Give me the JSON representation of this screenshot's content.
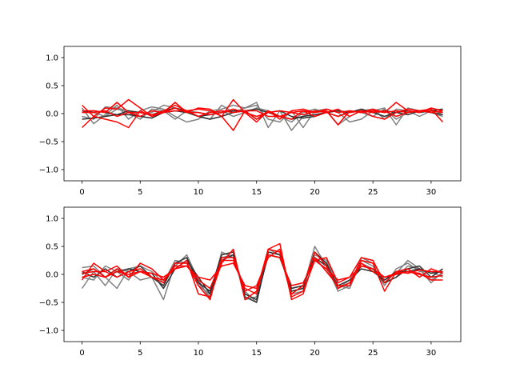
{
  "colors": {
    "gray": "#808080",
    "dark": "#303030",
    "red": "#ff0000",
    "frame": "#000000",
    "background": "#ffffff"
  },
  "chart_data": [
    {
      "type": "line",
      "title": "",
      "xlabel": "",
      "ylabel": "",
      "xlim": [
        -1.55,
        32.55
      ],
      "ylim": [
        -1.2,
        1.2
      ],
      "xticks": [
        0,
        5,
        10,
        15,
        20,
        25,
        30
      ],
      "yticks": [
        -1.0,
        -0.5,
        0.0,
        0.5,
        1.0
      ],
      "x_tick_labels": [
        "0",
        "5",
        "10",
        "15",
        "20",
        "25",
        "30"
      ],
      "y_tick_labels": [
        "−1.0",
        "−0.5",
        "0.0",
        "0.5",
        "1.0"
      ],
      "grid": false,
      "x": [
        0,
        1,
        2,
        3,
        4,
        5,
        6,
        7,
        8,
        9,
        10,
        11,
        12,
        13,
        14,
        15,
        16,
        17,
        18,
        19,
        20,
        21,
        22,
        23,
        24,
        25,
        26,
        27,
        28,
        29,
        30,
        31
      ],
      "series": [
        {
          "color": "gray",
          "values": [
            0.1,
            -0.18,
            -0.02,
            0.15,
            -0.1,
            0.05,
            0.12,
            0.08,
            -0.05,
            -0.15,
            -0.1,
            0.05,
            0.08,
            0.15,
            0.1,
            0.2,
            -0.25,
            0.05,
            -0.3,
            -0.05,
            0.05,
            0.05,
            -0.2,
            -0.05,
            0.05,
            0.08,
            -0.1,
            0.08,
            0.05,
            -0.05,
            0.05,
            0.08
          ]
        },
        {
          "color": "gray",
          "values": [
            -0.05,
            -0.1,
            0.12,
            0.1,
            0.05,
            -0.05,
            0.02,
            0.15,
            0.1,
            0.05,
            -0.05,
            -0.1,
            0.15,
            0.02,
            0.1,
            0.15,
            -0.1,
            -0.15,
            0.05,
            -0.25,
            0.05,
            0.08,
            0.02,
            -0.15,
            -0.1,
            0.05,
            0.1,
            -0.2,
            0.1,
            0.05,
            0.02,
            -0.05
          ]
        },
        {
          "color": "gray",
          "values": [
            0.05,
            0.02,
            -0.05,
            0.08,
            0.02,
            -0.1,
            0.08,
            0.05,
            -0.1,
            0.05,
            0.02,
            -0.02,
            0.05,
            -0.05,
            0.02,
            0.1,
            0.05,
            -0.05,
            -0.15,
            0.02,
            0.08,
            0.02,
            -0.05,
            0.05,
            0.02,
            -0.05,
            0.08,
            -0.1,
            0.02,
            0.05,
            0.08,
            -0.02
          ]
        },
        {
          "color": "dark",
          "values": [
            -0.1,
            -0.08,
            -0.05,
            -0.02,
            -0.02,
            -0.05,
            -0.08,
            0.02,
            0.05,
            0.02,
            -0.05,
            -0.02,
            0.02,
            0.05,
            0.05,
            0.08,
            0.02,
            -0.05,
            -0.1,
            -0.05,
            -0.02,
            0.02,
            0.05,
            0.02,
            0.05,
            0.02,
            0.05,
            0.02,
            -0.02,
            0.05,
            0.02,
            -0.02
          ]
        },
        {
          "color": "dark",
          "values": [
            0.02,
            0.05,
            0.02,
            -0.02,
            0.05,
            0.02,
            -0.02,
            0.05,
            0.1,
            0.05,
            -0.05,
            -0.1,
            -0.05,
            0.02,
            0.05,
            -0.1,
            0.02,
            0.05,
            -0.05,
            -0.08,
            -0.05,
            0.02,
            0.05,
            0.02,
            0.08,
            0.02,
            -0.05,
            0.02,
            0.05,
            0.02,
            0.05,
            0.08
          ]
        },
        {
          "color": "red",
          "values": [
            -0.25,
            -0.05,
            0.1,
            0.08,
            0.25,
            0.1,
            -0.05,
            0.05,
            0.15,
            0.05,
            0.08,
            0.05,
            -0.05,
            -0.3,
            0.05,
            -0.1,
            0.05,
            -0.1,
            0.05,
            0.08,
            0.02,
            0.05,
            -0.2,
            0.05,
            0.02,
            0.05,
            0.02,
            0.2,
            0.05,
            0.02,
            0.1,
            0.05
          ]
        },
        {
          "color": "red",
          "values": [
            0.15,
            -0.05,
            -0.1,
            -0.15,
            -0.25,
            0.05,
            -0.05,
            0.02,
            0.2,
            0.02,
            0.1,
            0.08,
            -0.05,
            0.25,
            0.02,
            -0.15,
            0.05,
            -0.05,
            -0.1,
            0.05,
            -0.05,
            0.02,
            0.08,
            -0.05,
            0.05,
            -0.05,
            -0.1,
            0.02,
            0.08,
            0.05,
            0.08,
            -0.15
          ]
        },
        {
          "color": "red",
          "values": [
            0.05,
            0.05,
            0.02,
            0.2,
            0.02,
            -0.05,
            0.05,
            0.02,
            0.05,
            0.05,
            -0.05,
            0.02,
            0.05,
            0.02,
            0.05,
            0.05,
            -0.05,
            -0.05,
            0.02,
            0.05,
            0.02,
            0.08,
            0.02,
            0.05,
            0.02,
            0.08,
            0.02,
            0.05,
            0.02,
            0.05,
            0.05,
            0.02
          ]
        },
        {
          "color": "red",
          "values": [
            0.02,
            0.02,
            0.05,
            -0.05,
            0.02,
            0.02,
            -0.02,
            0.02,
            0.1,
            0.02,
            0.02,
            -0.02,
            0.02,
            0.08,
            0.02,
            -0.05,
            0.02,
            0.05,
            0.02,
            -0.02,
            0.05,
            0.02,
            -0.05,
            0.02,
            0.05,
            0.02,
            0.05,
            -0.05,
            0.02,
            0.05,
            0.02,
            0.05
          ]
        }
      ]
    },
    {
      "type": "line",
      "title": "",
      "xlabel": "",
      "ylabel": "",
      "xlim": [
        -1.55,
        32.55
      ],
      "ylim": [
        -1.2,
        1.2
      ],
      "xticks": [
        0,
        5,
        10,
        15,
        20,
        25,
        30
      ],
      "yticks": [
        -1.0,
        -0.5,
        0.0,
        0.5,
        1.0
      ],
      "x_tick_labels": [
        "0",
        "5",
        "10",
        "15",
        "20",
        "25",
        "30"
      ],
      "y_tick_labels": [
        "−1.0",
        "−0.5",
        "0.0",
        "0.5",
        "1.0"
      ],
      "grid": false,
      "x": [
        0,
        1,
        2,
        3,
        4,
        5,
        6,
        7,
        8,
        9,
        10,
        11,
        12,
        13,
        14,
        15,
        16,
        17,
        18,
        19,
        20,
        21,
        22,
        23,
        24,
        25,
        26,
        27,
        28,
        29,
        30,
        31
      ],
      "series": [
        {
          "color": "gray",
          "values": [
            -0.25,
            0.05,
            -0.2,
            0.1,
            0.05,
            -0.1,
            -0.05,
            -0.45,
            0.2,
            0.3,
            -0.2,
            -0.35,
            0.3,
            0.35,
            -0.3,
            -0.5,
            0.4,
            0.35,
            -0.3,
            -0.25,
            0.5,
            0.15,
            -0.3,
            -0.2,
            0.3,
            0.2,
            -0.1,
            0.02,
            0.25,
            0.1,
            -0.15,
            0.05
          ]
        },
        {
          "color": "gray",
          "values": [
            0.12,
            0.15,
            -0.05,
            -0.25,
            0.1,
            0.15,
            0.05,
            -0.15,
            0.25,
            0.2,
            -0.15,
            -0.4,
            0.4,
            0.3,
            -0.35,
            -0.45,
            0.35,
            0.3,
            -0.25,
            -0.2,
            0.35,
            0.25,
            -0.2,
            -0.25,
            0.25,
            0.15,
            -0.2,
            0.1,
            0.2,
            0.05,
            0.05,
            -0.05
          ]
        },
        {
          "color": "gray",
          "values": [
            -0.05,
            -0.1,
            0.15,
            0.05,
            -0.1,
            0.2,
            0.1,
            -0.1,
            0.15,
            0.35,
            -0.1,
            -0.45,
            0.35,
            0.4,
            -0.45,
            -0.4,
            0.45,
            0.35,
            -0.35,
            -0.3,
            0.25,
            0.1,
            -0.25,
            -0.1,
            0.2,
            0.1,
            -0.15,
            -0.05,
            0.15,
            0.1,
            -0.1,
            0.02
          ]
        },
        {
          "color": "dark",
          "values": [
            0.05,
            -0.05,
            0.1,
            -0.05,
            0.05,
            0.15,
            -0.05,
            -0.2,
            0.2,
            0.3,
            -0.15,
            -0.3,
            0.35,
            0.4,
            -0.4,
            -0.5,
            0.4,
            0.35,
            -0.3,
            -0.25,
            0.4,
            0.2,
            -0.25,
            -0.15,
            0.15,
            0.1,
            -0.15,
            -0.05,
            0.1,
            0.15,
            -0.05,
            0.1
          ]
        },
        {
          "color": "dark",
          "values": [
            0.0,
            0.1,
            -0.05,
            0.05,
            0.1,
            0.05,
            0.02,
            -0.25,
            0.1,
            0.25,
            -0.05,
            -0.35,
            0.25,
            0.35,
            -0.35,
            -0.45,
            0.35,
            0.3,
            -0.25,
            -0.2,
            0.3,
            0.15,
            -0.2,
            -0.1,
            0.1,
            0.05,
            -0.1,
            0.05,
            0.05,
            0.1,
            0.02,
            0.05
          ]
        },
        {
          "color": "red",
          "values": [
            -0.1,
            0.2,
            0.05,
            0.15,
            -0.05,
            0.2,
            0.1,
            -0.1,
            0.1,
            0.25,
            -0.35,
            -0.4,
            0.2,
            0.45,
            -0.45,
            -0.3,
            0.45,
            0.4,
            -0.4,
            -0.3,
            0.25,
            0.3,
            -0.15,
            -0.05,
            0.3,
            0.25,
            -0.15,
            0.05,
            0.02,
            0.08,
            0.05,
            0.05
          ]
        },
        {
          "color": "red",
          "values": [
            0.05,
            0.1,
            -0.05,
            0.1,
            -0.05,
            0.05,
            -0.05,
            -0.15,
            0.2,
            0.2,
            -0.2,
            -0.45,
            0.3,
            0.3,
            -0.3,
            -0.2,
            0.3,
            0.45,
            -0.35,
            -0.2,
            0.4,
            0.15,
            -0.25,
            -0.15,
            0.25,
            0.2,
            -0.3,
            0.05,
            0.1,
            -0.05,
            0.1,
            0.02
          ]
        },
        {
          "color": "red",
          "values": [
            0.02,
            0.05,
            0.05,
            -0.05,
            0.05,
            0.1,
            -0.05,
            -0.1,
            0.15,
            0.15,
            -0.1,
            -0.25,
            0.25,
            0.25,
            -0.25,
            -0.35,
            0.45,
            0.55,
            -0.45,
            -0.35,
            0.3,
            0.05,
            -0.2,
            -0.2,
            0.2,
            0.05,
            -0.05,
            0.02,
            0.05,
            0.02,
            -0.1,
            -0.1
          ]
        },
        {
          "color": "red",
          "values": [
            -0.05,
            0.0,
            -0.05,
            0.05,
            0.0,
            0.05,
            0.02,
            -0.05,
            0.1,
            0.15,
            -0.05,
            -0.1,
            0.15,
            0.2,
            -0.2,
            -0.25,
            0.35,
            0.3,
            -0.2,
            -0.15,
            0.25,
            0.1,
            -0.1,
            -0.05,
            0.15,
            0.1,
            -0.05,
            0.0,
            0.05,
            0.0,
            -0.05,
            -0.02
          ]
        }
      ]
    }
  ]
}
